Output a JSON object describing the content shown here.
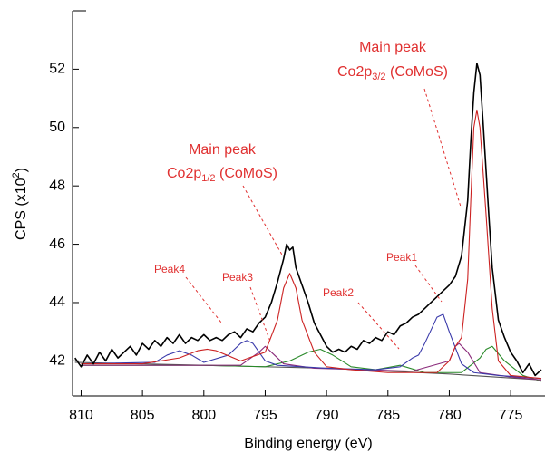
{
  "chart_data": {
    "type": "line",
    "x_label": "Binding energy (eV)",
    "y_label": {
      "text": "CPS (x10",
      "sup": "2",
      "close": ")"
    },
    "xlim": [
      810.7,
      772.2
    ],
    "ylim": [
      40.8,
      54
    ],
    "xticks": [
      810,
      805,
      800,
      795,
      790,
      785,
      780,
      775
    ],
    "yticks": [
      42,
      44,
      46,
      48,
      50,
      52
    ],
    "annotations": [
      {
        "line1": "Main peak",
        "base": "Co2p",
        "sub": "1/2",
        "rest": " (CoMoS)"
      },
      {
        "line1": "Main peak",
        "base": "Co2p",
        "sub": "3/2",
        "rest": " (CoMoS)"
      },
      {
        "text": "Peak1"
      },
      {
        "text": "Peak2"
      },
      {
        "text": "Peak3"
      },
      {
        "text": "Peak4"
      }
    ],
    "series": [
      {
        "color": "#555555",
        "x": [
          810.5,
          800,
          790,
          780,
          772.5
        ],
        "values": [
          41.95,
          41.85,
          41.75,
          41.55,
          41.35
        ]
      },
      {
        "color": "#2a8a2a",
        "x": [
          810,
          800,
          795,
          793,
          791.5,
          790.5,
          789.5,
          788,
          786,
          784,
          782,
          779,
          777.5,
          777,
          776.5,
          775.5,
          774,
          772.5
        ],
        "values": [
          41.85,
          41.85,
          41.8,
          42.0,
          42.3,
          42.4,
          42.2,
          41.8,
          41.7,
          41.85,
          41.6,
          41.6,
          42.1,
          42.4,
          42.5,
          42.0,
          41.5,
          41.3
        ]
      },
      {
        "color": "#8a2a7a",
        "x": [
          810,
          797,
          795.5,
          795,
          794.5,
          793.5,
          791,
          783,
          780,
          779.5,
          779.2,
          778.5,
          777.5,
          775,
          772.5
        ],
        "values": [
          41.85,
          41.85,
          42.3,
          42.5,
          42.3,
          41.9,
          41.75,
          41.65,
          42.0,
          42.5,
          42.6,
          42.3,
          41.6,
          41.45,
          41.35
        ]
      },
      {
        "color": "#3a3aaa",
        "x": [
          810,
          804,
          803,
          802,
          801,
          800,
          798,
          797,
          796.5,
          796,
          795,
          794,
          790,
          786,
          784,
          783,
          782.5,
          782,
          781,
          780.5,
          780,
          779,
          778,
          776,
          772.5
        ],
        "values": [
          41.9,
          41.95,
          42.2,
          42.35,
          42.2,
          41.95,
          42.2,
          42.6,
          42.7,
          42.6,
          42.0,
          41.85,
          41.75,
          41.7,
          41.8,
          42.1,
          42.2,
          42.6,
          43.5,
          43.6,
          43.0,
          41.9,
          41.6,
          41.5,
          41.4
        ]
      },
      {
        "color": "#cc2222",
        "x": [
          810,
          805,
          802,
          800.5,
          799.7,
          799,
          797,
          795,
          794,
          793.5,
          793,
          792.5,
          792,
          791,
          790,
          788,
          785,
          781,
          780,
          779.5,
          779,
          778.5,
          778.25,
          778,
          777.75,
          777.5,
          777,
          776.5,
          776,
          775,
          772.5
        ],
        "values": [
          41.9,
          41.9,
          42.1,
          42.35,
          42.4,
          42.35,
          42.0,
          42.3,
          43.4,
          44.5,
          45.0,
          44.5,
          43.4,
          42.3,
          41.8,
          41.7,
          41.6,
          41.6,
          42.0,
          42.5,
          42.8,
          44.8,
          47.5,
          50.0,
          50.6,
          50.0,
          47.0,
          43.8,
          42.0,
          41.5,
          41.4
        ]
      },
      {
        "color": "#000000",
        "x": [
          810.5,
          810,
          809.5,
          809,
          808.5,
          808,
          807.5,
          807,
          806.5,
          806,
          805.5,
          805,
          804.5,
          804,
          803.5,
          803,
          802.5,
          802,
          801.5,
          801,
          800.5,
          800,
          799.5,
          799,
          798.5,
          798,
          797.5,
          797,
          796.5,
          796,
          795.5,
          795,
          794.5,
          794,
          793.5,
          793.25,
          793,
          792.75,
          792.5,
          792,
          791.5,
          791,
          790.5,
          790,
          789.5,
          789,
          788.5,
          788,
          787.5,
          787,
          786.5,
          786,
          785.5,
          785,
          784.5,
          784,
          783.5,
          783,
          782.5,
          782,
          781.5,
          781,
          780.5,
          780,
          779.5,
          779,
          778.5,
          778.25,
          778,
          777.75,
          777.5,
          777.25,
          777,
          776.75,
          776.5,
          776,
          775.5,
          775,
          774.5,
          774,
          773.5,
          773,
          772.5
        ],
        "values": [
          42.1,
          41.8,
          42.2,
          41.9,
          42.3,
          42.0,
          42.4,
          42.1,
          42.3,
          42.5,
          42.2,
          42.6,
          42.4,
          42.7,
          42.5,
          42.8,
          42.6,
          42.9,
          42.6,
          42.8,
          42.7,
          42.9,
          42.7,
          42.8,
          42.7,
          42.9,
          43.0,
          42.8,
          43.1,
          43.0,
          43.3,
          43.5,
          44.0,
          44.7,
          45.5,
          46.0,
          45.8,
          45.9,
          45.2,
          44.6,
          44.0,
          43.3,
          42.9,
          42.5,
          42.3,
          42.4,
          42.3,
          42.5,
          42.4,
          42.7,
          42.6,
          42.8,
          42.7,
          43.0,
          42.9,
          43.2,
          43.3,
          43.5,
          43.6,
          43.8,
          44.0,
          44.2,
          44.4,
          44.6,
          44.9,
          45.6,
          47.5,
          49.5,
          51.2,
          52.2,
          51.8,
          50.2,
          48.5,
          46.8,
          45.2,
          43.4,
          42.8,
          42.3,
          42.0,
          41.6,
          41.9,
          41.5,
          41.7
        ]
      }
    ]
  }
}
